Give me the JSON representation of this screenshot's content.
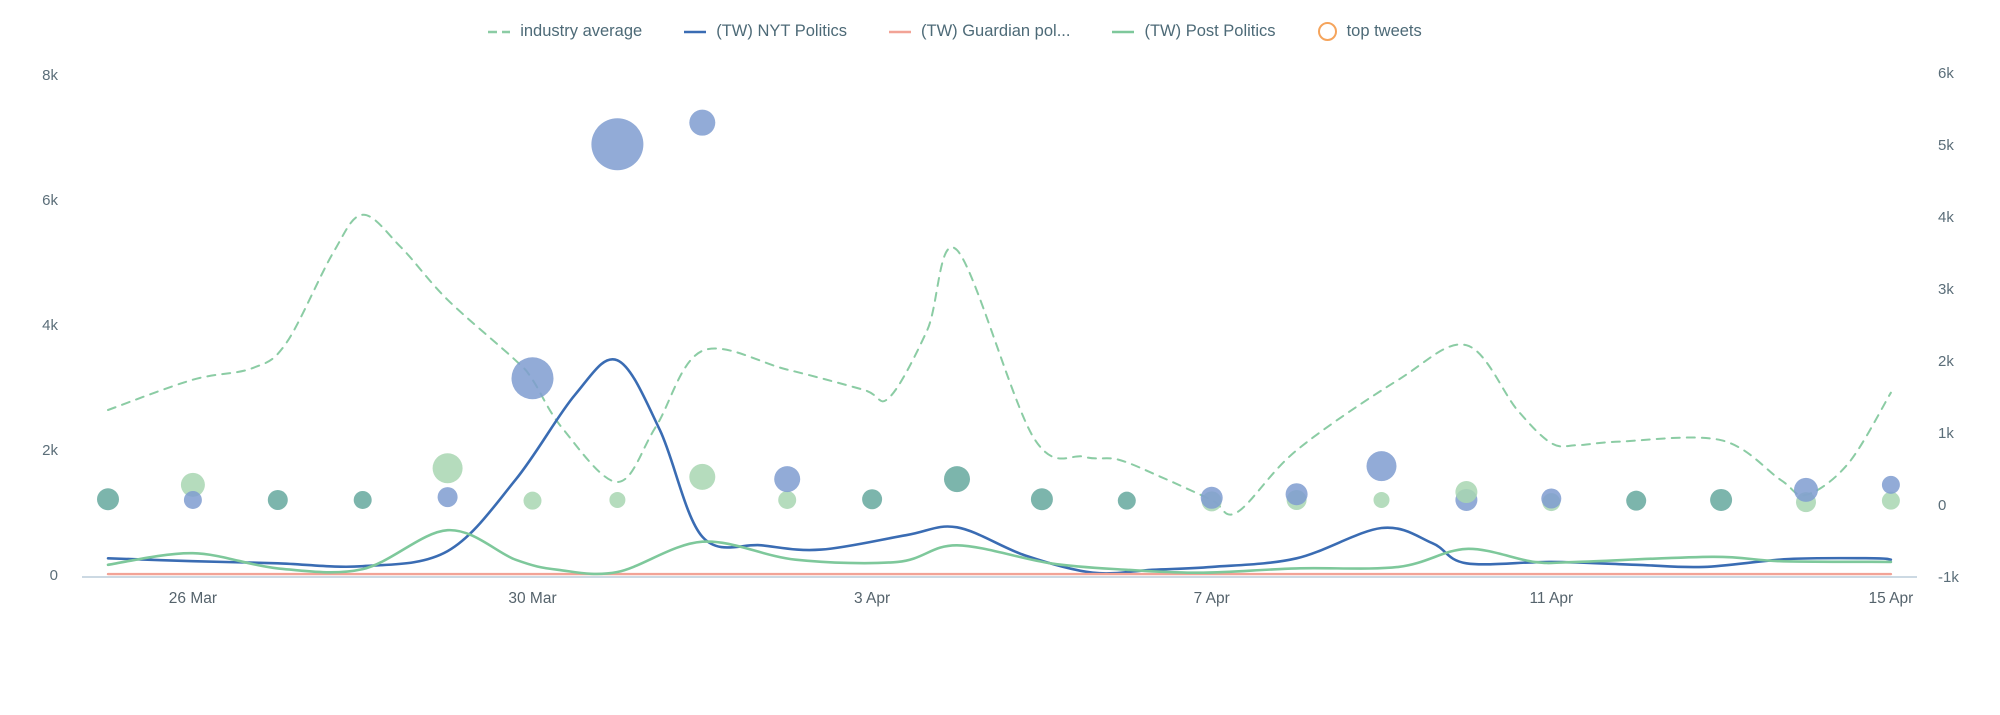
{
  "chart": {
    "legend_items": [
      {
        "label": "industry average",
        "marker": "dashed-line",
        "color": "#8bcca4"
      },
      {
        "label": "(TW) NYT Politics",
        "marker": "solid-line",
        "color": "#3a6cb3"
      },
      {
        "label": "(TW) Guardian pol...",
        "marker": "solid-line",
        "color": "#f2a396"
      },
      {
        "label": "(TW) Post Politics",
        "marker": "solid-line",
        "color": "#7ec89b"
      },
      {
        "label": "top tweets",
        "marker": "circle-outline",
        "color": "#f5a45c"
      }
    ]
  },
  "chart_data": {
    "type": "line",
    "title": "",
    "grid": "off",
    "legend_position": "top-center",
    "x_axis": {
      "tick_labels": [
        {
          "label": "26 Mar",
          "day": 1
        },
        {
          "label": "30 Mar",
          "day": 5
        },
        {
          "label": "3 Apr",
          "day": 9
        },
        {
          "label": "7 Apr",
          "day": 13
        },
        {
          "label": "11 Apr",
          "day": 17
        },
        {
          "label": "15 Apr",
          "day": 21
        }
      ]
    },
    "y_axis_left": {
      "range": [
        0,
        8000
      ],
      "ticks": [
        {
          "label": "8k",
          "value": 8000
        },
        {
          "label": "6k",
          "value": 6000
        },
        {
          "label": "4k",
          "value": 4000
        },
        {
          "label": "2k",
          "value": 2000
        },
        {
          "label": "0",
          "value": 0
        }
      ]
    },
    "y_axis_right": {
      "range": [
        -1000,
        6000
      ],
      "ticks": [
        {
          "label": "6k",
          "value": 6000
        },
        {
          "label": "5k",
          "value": 5000
        },
        {
          "label": "4k",
          "value": 4000
        },
        {
          "label": "3k",
          "value": 3000
        },
        {
          "label": "2k",
          "value": 2000
        },
        {
          "label": "1k",
          "value": 1000
        },
        {
          "label": "0",
          "value": 0
        },
        {
          "label": "-1k",
          "value": -1000
        }
      ]
    },
    "series": [
      {
        "name": "industry average",
        "color": "#8bcca4",
        "style": "dashed",
        "width": 2,
        "axis": "right",
        "points": [
          [
            0,
            1320
          ],
          [
            1,
            1740
          ],
          [
            1.7,
            1900
          ],
          [
            2.1,
            2250
          ],
          [
            2.65,
            3500
          ],
          [
            3,
            4030
          ],
          [
            3.45,
            3580
          ],
          [
            4,
            2850
          ],
          [
            4.8,
            2010
          ],
          [
            5,
            1740
          ],
          [
            5.35,
            1070
          ],
          [
            6,
            320
          ],
          [
            6.45,
            1080
          ],
          [
            7,
            2140
          ],
          [
            8,
            1880
          ],
          [
            8.9,
            1600
          ],
          [
            9.2,
            1490
          ],
          [
            9.65,
            2430
          ],
          [
            10,
            3540
          ],
          [
            10.9,
            940
          ],
          [
            11.5,
            670
          ],
          [
            11.9,
            630
          ],
          [
            12.4,
            390
          ],
          [
            13,
            70
          ],
          [
            13.3,
            -100
          ],
          [
            14,
            760
          ],
          [
            15.2,
            1740
          ],
          [
            16,
            2220
          ],
          [
            16.6,
            1320
          ],
          [
            17,
            860
          ],
          [
            17.3,
            830
          ],
          [
            17.8,
            880
          ],
          [
            19,
            900
          ],
          [
            19.7,
            350
          ],
          [
            20,
            140
          ],
          [
            20.5,
            580
          ],
          [
            21,
            1560
          ]
        ]
      },
      {
        "name": "(TW) NYT Politics",
        "color": "#3a6cb3",
        "style": "solid",
        "width": 2.6,
        "axis": "right",
        "points": [
          [
            0,
            -740
          ],
          [
            1,
            -780
          ],
          [
            2,
            -810
          ],
          [
            3,
            -850
          ],
          [
            4,
            -640
          ],
          [
            4.8,
            350
          ],
          [
            5.5,
            1530
          ],
          [
            6,
            2010
          ],
          [
            6.5,
            1040
          ],
          [
            7,
            -440
          ],
          [
            7.7,
            -560
          ],
          [
            8.4,
            -620
          ],
          [
            9.4,
            -420
          ],
          [
            10,
            -310
          ],
          [
            10.8,
            -700
          ],
          [
            11.6,
            -940
          ],
          [
            12.3,
            -900
          ],
          [
            13,
            -860
          ],
          [
            14,
            -740
          ],
          [
            15,
            -320
          ],
          [
            15.6,
            -530
          ],
          [
            16,
            -810
          ],
          [
            17,
            -790
          ],
          [
            18,
            -830
          ],
          [
            18.8,
            -860
          ],
          [
            19.8,
            -750
          ],
          [
            20.8,
            -740
          ],
          [
            21,
            -760
          ]
        ]
      },
      {
        "name": "(TW) Guardian pol...",
        "color": "#f2a396",
        "style": "solid",
        "width": 2.4,
        "axis": "right",
        "points": [
          [
            0,
            -960
          ],
          [
            21,
            -960
          ]
        ]
      },
      {
        "name": "(TW) Post Politics",
        "color": "#7ec89b",
        "style": "solid",
        "width": 2.6,
        "axis": "right",
        "points": [
          [
            0,
            -830
          ],
          [
            1,
            -670
          ],
          [
            2,
            -880
          ],
          [
            3,
            -890
          ],
          [
            4,
            -350
          ],
          [
            4.8,
            -760
          ],
          [
            5.3,
            -900
          ],
          [
            6,
            -930
          ],
          [
            7,
            -510
          ],
          [
            8.1,
            -760
          ],
          [
            9.3,
            -790
          ],
          [
            10,
            -560
          ],
          [
            11.1,
            -810
          ],
          [
            12,
            -900
          ],
          [
            12.9,
            -940
          ],
          [
            14,
            -880
          ],
          [
            15.2,
            -860
          ],
          [
            16,
            -610
          ],
          [
            16.8,
            -790
          ],
          [
            17.3,
            -790
          ],
          [
            18.9,
            -720
          ],
          [
            19.7,
            -780
          ],
          [
            21,
            -790
          ]
        ]
      }
    ],
    "top_tweets_bubbles": {
      "name": "top tweets",
      "axis": "right",
      "colors": {
        "blue": "#7f9cd0",
        "green": "#a8d6b2",
        "teal": "#65a89e"
      },
      "items": [
        [
          0,
          80,
          11,
          "teal"
        ],
        [
          1,
          280,
          12,
          "green"
        ],
        [
          1,
          70,
          9,
          "blue"
        ],
        [
          2,
          70,
          10,
          "teal"
        ],
        [
          3,
          70,
          9,
          "teal"
        ],
        [
          4,
          510,
          15,
          "green"
        ],
        [
          4,
          110,
          10,
          "blue"
        ],
        [
          5,
          60,
          9,
          "green"
        ],
        [
          5,
          1760,
          21,
          "blue"
        ],
        [
          6,
          70,
          8,
          "green"
        ],
        [
          6,
          5010,
          26,
          "blue"
        ],
        [
          7,
          390,
          13,
          "green"
        ],
        [
          7,
          5310,
          13,
          "blue"
        ],
        [
          8,
          70,
          9,
          "green"
        ],
        [
          8,
          360,
          13,
          "blue"
        ],
        [
          9,
          80,
          10,
          "teal"
        ],
        [
          10,
          360,
          13,
          "teal"
        ],
        [
          11,
          80,
          11,
          "teal"
        ],
        [
          12,
          60,
          9,
          "teal"
        ],
        [
          13,
          50,
          10,
          "green"
        ],
        [
          13,
          100,
          11,
          "blue"
        ],
        [
          14,
          70,
          10,
          "green"
        ],
        [
          14,
          150,
          11,
          "blue"
        ],
        [
          15,
          70,
          8,
          "green"
        ],
        [
          15,
          540,
          15,
          "blue"
        ],
        [
          16,
          70,
          11,
          "blue"
        ],
        [
          16,
          180,
          11,
          "green"
        ],
        [
          17,
          40,
          9,
          "green"
        ],
        [
          17,
          90,
          10,
          "blue"
        ],
        [
          18,
          60,
          10,
          "teal"
        ],
        [
          19,
          70,
          11,
          "teal"
        ],
        [
          20,
          40,
          10,
          "green"
        ],
        [
          20,
          210,
          12,
          "blue"
        ],
        [
          21,
          60,
          9,
          "green"
        ],
        [
          21,
          280,
          9,
          "blue"
        ]
      ]
    },
    "baseline_color": "#ccd9e3"
  }
}
